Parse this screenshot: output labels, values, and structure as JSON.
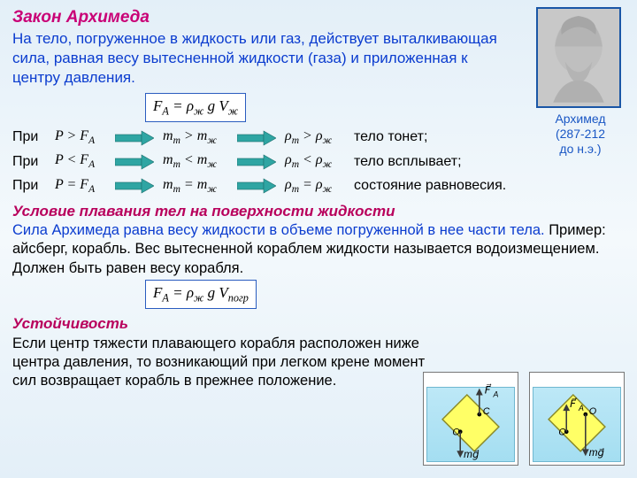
{
  "colors": {
    "accent_pink": "#c90076",
    "accent_pink2": "#b8005c",
    "blue_text": "#0b3ccf",
    "arrow_fill": "#2fa5a3",
    "arrow_stroke": "#1b6e6c",
    "formula_border": "#2a5cbf",
    "bg_top": "#e3eff8",
    "bg_mid": "#f4f9fc",
    "portrait_border": "#1a56a6",
    "water_top": "#bde8f7",
    "water_bottom": "#a4def1",
    "ship_fill": "#ffff66",
    "ship_stroke": "#7a7a1e",
    "vec_color": "#3a3a3a"
  },
  "title": "Закон Архимеда",
  "law_text": "На тело, погруженное в жидкость или газ, действует выталкивающая сила, равная весу вытесненной жидкости (газа) и приложенная к центру давления.",
  "formula1_html": "F<span class='sub'>A</span> = ρ<span class='sub'>ж</span> g V<span class='sub'>ж</span>",
  "pri": "При",
  "rows": [
    {
      "cond": "P &gt; F<span class='sub'>A</span>",
      "m": "m<span class='sub'>m</span> &gt; m<span class='sub'>ж</span>",
      "rho": "ρ<span class='sub'>m</span> &gt; ρ<span class='sub'>ж</span>",
      "result": "тело тонет;"
    },
    {
      "cond": "P &lt; F<span class='sub'>A</span>",
      "m": "m<span class='sub'>m</span> &lt; m<span class='sub'>ж</span>",
      "rho": "ρ<span class='sub'>m</span> &lt; ρ<span class='sub'>ж</span>",
      "result": "тело всплывает;"
    },
    {
      "cond": "P = F<span class='sub'>A</span>",
      "m": "m<span class='sub'>m</span> = m<span class='sub'>ж</span>",
      "rho": "ρ<span class='sub'>m</span> = ρ<span class='sub'>ж</span>",
      "result": "состояние равновесия."
    }
  ],
  "section2_title": "Условие плавания тел на поверхности жидкости",
  "section2_lead": "Сила Архимеда равна весу жидкости в объеме погруженной в нее части тела.",
  "section2_rest": " Пример: айсберг, корабль. Вес вытесненной кораблем жидкости называется водоизмещением. Должен быть равен весу корабля.",
  "formula2_html": "F<span class='sub'>A</span> = ρ<span class='sub'>ж</span> g V<span class='sub'>погр</span>",
  "section3_title": "Устойчивость",
  "section3_text": "Если центр тяжести плавающего корабля расположен ниже центра давления, то возникающий при легком крене момент сил возвращает корабль в прежнее положение.",
  "portrait": {
    "name": "Архимед",
    "dates": "(287-212",
    "era": "до н.э.)"
  },
  "diagram": {
    "label_FA": "F⃗A",
    "label_mg": "mg⃗",
    "label_O": "O",
    "label_C": "C",
    "stable": {
      "O_above_C": false
    },
    "unstable": {
      "O_above_C": true
    }
  }
}
